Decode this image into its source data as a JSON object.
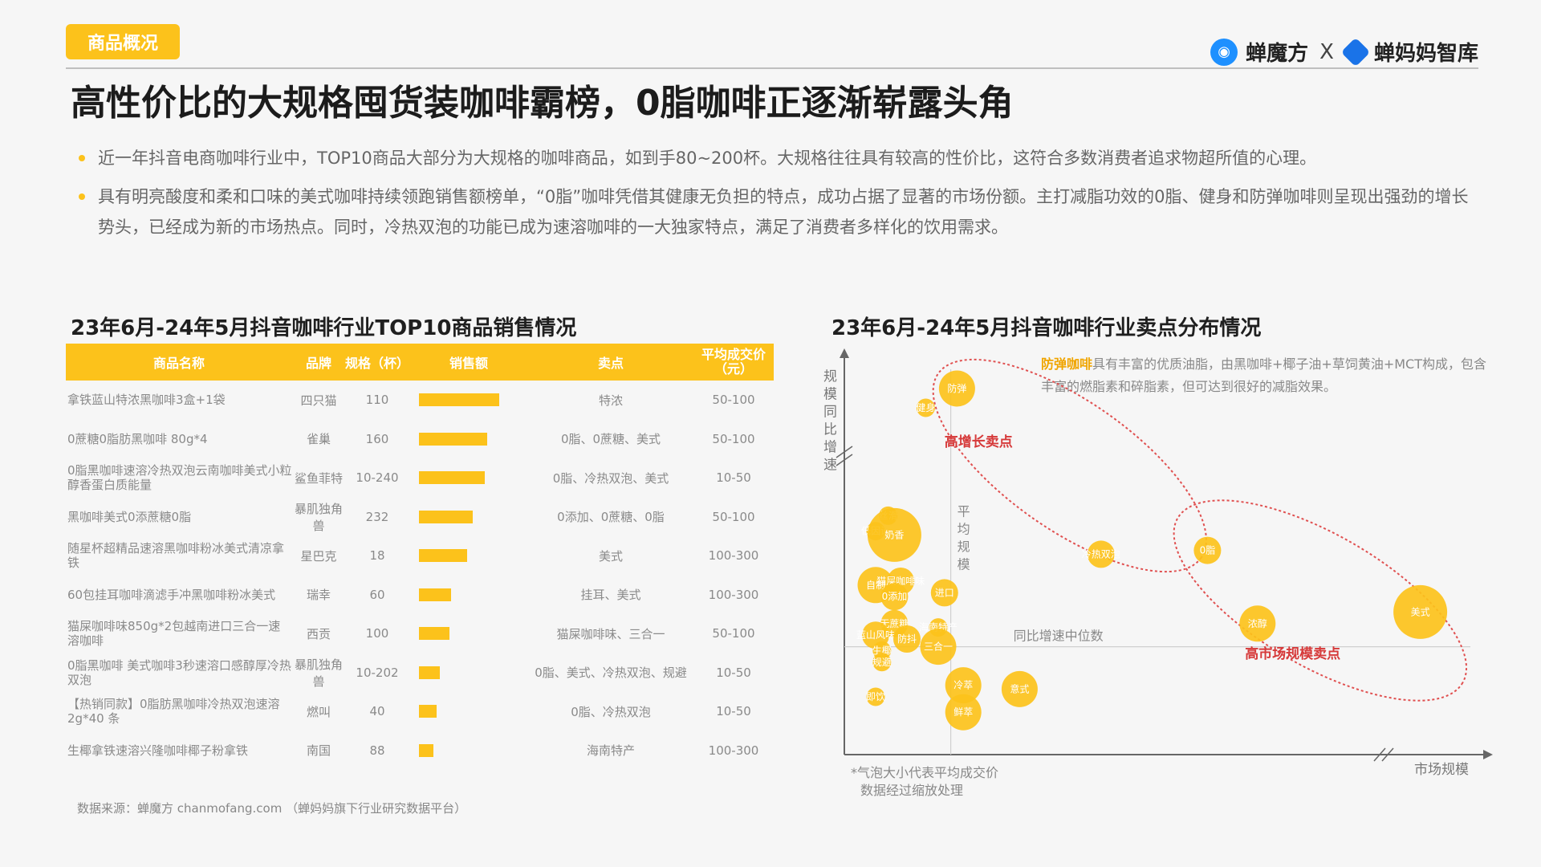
{
  "header": {
    "tag": "商品概况",
    "title": "高性价比的大规格囤货装咖啡霸榜，0脂咖啡正逐渐崭露头角",
    "brand_left": "蝉魔方",
    "brand_x": "X",
    "brand_right": "蝉妈妈智库"
  },
  "bullets": [
    "近一年抖音电商咖啡行业中，TOP10商品大部分为大规格的咖啡商品，如到手80~200杯。大规格往往具有较高的性价比，这符合多数消费者追求物超所值的心理。",
    "具有明亮酸度和柔和口味的美式咖啡持续领跑销售额榜单，“0脂”咖啡凭借其健康无负担的特点，成功占据了显著的市场份额。主打减脂功效的0脂、健身和防弹咖啡则呈现出强劲的增长势头，已经成为新的市场热点。同时，冷热双泡的功能已成为速溶咖啡的一大独家特点，满足了消费者多样化的饮用需求。"
  ],
  "table": {
    "title": "23年6月-24年5月抖音咖啡行业TOP10商品销售情况",
    "headers": [
      "商品名称",
      "品牌",
      "规格（杯）",
      "销售额",
      "卖点",
      "平均成交价（元）"
    ],
    "rows": [
      {
        "name": "拿铁蓝山特浓黑咖啡3盒+1袋",
        "brand": "四只猫",
        "spec": "110",
        "sales_level": 1.0,
        "points": "特浓",
        "price": "50-100"
      },
      {
        "name": "0蔗糖0脂肪黑咖啡 80g*4",
        "brand": "雀巢",
        "spec": "160",
        "sales_level": 0.85,
        "points": "0脂、0蔗糖、美式",
        "price": "50-100"
      },
      {
        "name": "0脂黑咖啡速溶冷热双泡云南咖啡美式小粒醇香蛋白质能量",
        "brand": "鲨鱼菲特",
        "spec": "10-240",
        "sales_level": 0.82,
        "points": "0脂、冷热双泡、美式",
        "price": "10-50"
      },
      {
        "name": "黑咖啡美式0添蔗糖0脂",
        "brand": "暴肌独角兽",
        "spec": "232",
        "sales_level": 0.67,
        "points": "0添加、0蔗糖、0脂",
        "price": "50-100"
      },
      {
        "name": "随星杯超精品速溶黑咖啡粉冰美式清凉拿铁",
        "brand": "星巴克",
        "spec": "18",
        "sales_level": 0.6,
        "points": "美式",
        "price": "100-300"
      },
      {
        "name": "60包挂耳咖啡滴滤手冲黑咖啡粉冰美式",
        "brand": "瑞幸",
        "spec": "60",
        "sales_level": 0.4,
        "points": "挂耳、美式",
        "price": "100-300"
      },
      {
        "name": "猫屎咖啡味850g*2包越南进口三合一速溶咖啡",
        "brand": "西贡",
        "spec": "100",
        "sales_level": 0.38,
        "points": "猫屎咖啡味、三合一",
        "price": "50-100"
      },
      {
        "name": "0脂黑咖啡 美式咖啡3秒速溶口感醇厚冷热双泡",
        "brand": "暴肌独角兽",
        "spec": "10-202",
        "sales_level": 0.26,
        "points": "0脂、美式、冷热双泡、规避",
        "price": "10-50"
      },
      {
        "name": "【热销同款】0脂肪黑咖啡冷热双泡速溶2g*40 条",
        "brand": "燃叫",
        "spec": "40",
        "sales_level": 0.22,
        "points": "0脂、冷热双泡",
        "price": "10-50"
      },
      {
        "name": "生椰拿铁速溶兴隆咖啡椰子粉拿铁",
        "brand": "南国",
        "spec": "88",
        "sales_level": 0.18,
        "points": "海南特产",
        "price": "100-300"
      }
    ]
  },
  "source": "数据来源：蝉魔方 chanmofang.com （蝉妈妈旗下行业研究数据平台）",
  "chart_data": {
    "type": "scatter",
    "title": "23年6月-24年5月抖音咖啡行业卖点分布情况",
    "xlabel": "市场规模",
    "ylabel": "规模同比增速",
    "xlim": [
      0,
      100
    ],
    "ylim": [
      0,
      100
    ],
    "median_x_label": "平均规模",
    "median_y_label": "同比增速中位数",
    "points": [
      {
        "label": "防弹",
        "x": 18,
        "y": 95,
        "size": 3
      },
      {
        "label": "健身",
        "x": 13,
        "y": 90,
        "size": 1
      },
      {
        "label": "丝滑",
        "x": 7,
        "y": 62,
        "size": 1
      },
      {
        "label": "低因设",
        "x": 5,
        "y": 58,
        "size": 1
      },
      {
        "label": "奶香",
        "x": 8,
        "y": 57,
        "size": 5
      },
      {
        "label": "冷热双泡",
        "x": 41,
        "y": 52,
        "size": 2
      },
      {
        "label": "0脂",
        "x": 58,
        "y": 53,
        "size": 2
      },
      {
        "label": "自制",
        "x": 5,
        "y": 44,
        "size": 3
      },
      {
        "label": "猫屎咖啡味",
        "x": 9,
        "y": 45,
        "size": 2
      },
      {
        "label": "0添加",
        "x": 8,
        "y": 41,
        "size": 2
      },
      {
        "label": "进口",
        "x": 16,
        "y": 42,
        "size": 2
      },
      {
        "label": "无蔗糖",
        "x": 8,
        "y": 34,
        "size": 2
      },
      {
        "label": "海南特产",
        "x": 15,
        "y": 33,
        "size": 1
      },
      {
        "label": "蓝山风味",
        "x": 5,
        "y": 31,
        "size": 2
      },
      {
        "label": "防抖",
        "x": 10,
        "y": 30,
        "size": 2
      },
      {
        "label": "三合一",
        "x": 15,
        "y": 28,
        "size": 3
      },
      {
        "label": "生椰",
        "x": 6,
        "y": 27,
        "size": 1
      },
      {
        "label": "规避",
        "x": 6,
        "y": 24,
        "size": 1
      },
      {
        "label": "冷萃",
        "x": 19,
        "y": 18,
        "size": 3
      },
      {
        "label": "意式",
        "x": 28,
        "y": 17,
        "size": 3
      },
      {
        "label": "即饮",
        "x": 5,
        "y": 15,
        "size": 1
      },
      {
        "label": "鲜萃",
        "x": 19,
        "y": 11,
        "size": 3
      },
      {
        "label": "浓醇",
        "x": 66,
        "y": 34,
        "size": 3
      },
      {
        "label": "美式",
        "x": 92,
        "y": 37,
        "size": 5
      }
    ],
    "annotations": [
      {
        "text": "高增长卖点"
      },
      {
        "text": "高市场规模卖点"
      }
    ],
    "description_highlight": "防弹咖啡",
    "description": "具有丰富的优质油脂，由黑咖啡+椰子油+草饲黄油+MCT构成，包含丰富的燃脂素和碎脂素，但可达到很好的减脂效果。",
    "footnote_1": "*气泡大小代表平均成交价",
    "footnote_2": "数据经过缩放处理",
    "colors": {
      "bubble": "#fcc21b",
      "bubble_text": "#ffffff",
      "ellipse": "#e05050",
      "annotation": "#d63a3a",
      "axis": "#666666"
    }
  }
}
